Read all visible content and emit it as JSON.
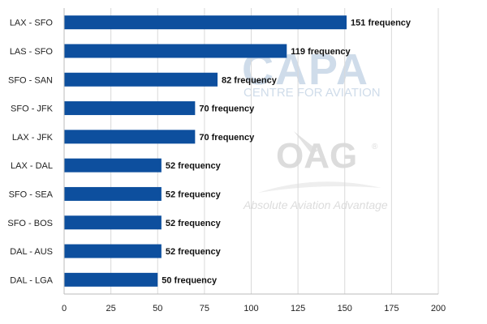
{
  "chart_data": {
    "type": "bar",
    "orientation": "horizontal",
    "categories": [
      "LAX - SFO",
      "LAS - SFO",
      "SFO - SAN",
      "SFO - JFK",
      "LAX - JFK",
      "LAX - DAL",
      "SFO - SEA",
      "SFO - BOS",
      "DAL - AUS",
      "DAL - LGA"
    ],
    "values": [
      151,
      119,
      82,
      70,
      70,
      52,
      52,
      52,
      52,
      50
    ],
    "data_labels": [
      "151 frequency",
      "119 frequency",
      "82 frequency",
      "70 frequency",
      "70 frequency",
      "52 frequency",
      "52 frequency",
      "52 frequency",
      "52 frequency",
      "50 frequency"
    ],
    "title": "",
    "xlabel": "",
    "ylabel": "",
    "xlim": [
      0,
      200
    ],
    "x_ticks": [
      "0",
      "25",
      "50",
      "75",
      "100",
      "125",
      "150",
      "175",
      "200"
    ],
    "grid": "vertical",
    "legend": "none",
    "bar_color": "#0d4f9e"
  },
  "watermarks": {
    "capa": "CAPA",
    "capa_sub": "CENTRE FOR AVIATION",
    "oag": "OAG",
    "oag_sub": "Absolute Aviation Advantage"
  }
}
